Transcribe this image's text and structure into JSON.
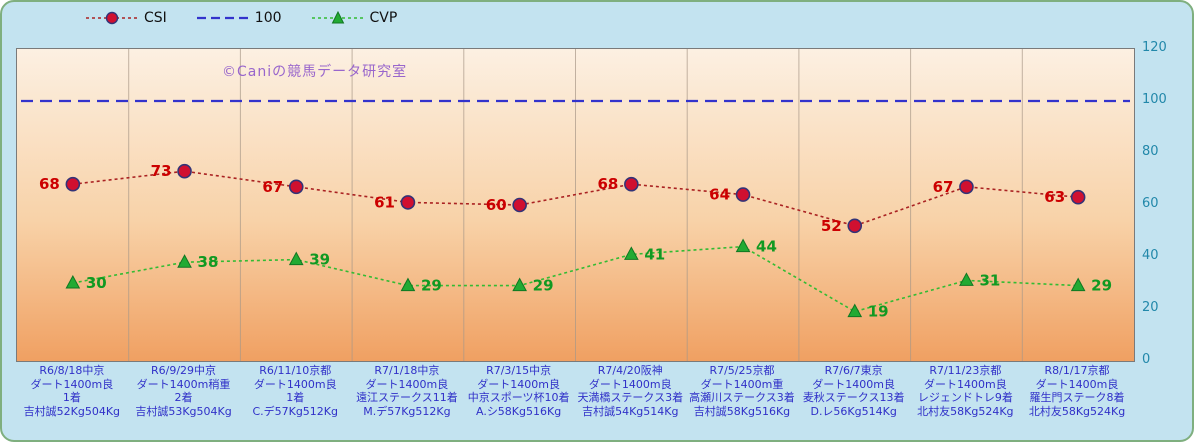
{
  "watermark": "©Caniの競馬データ研究室",
  "legend": {
    "items": [
      {
        "label": "CSI",
        "type": "circle",
        "marker_color": "#D01030",
        "line_color": "#AA2222"
      },
      {
        "label": "100",
        "type": "line",
        "marker_color": "#3333CC",
        "line_color": "#3333CC"
      },
      {
        "label": "CVP",
        "type": "triangle",
        "marker_color": "#22AA33",
        "line_color": "#33BB33"
      }
    ]
  },
  "colors": {
    "background": "#C3E3F0",
    "plot_gradient_top": "#FCF0E2",
    "plot_gradient_bottom": "#F0A062",
    "csi_label": "#CC0000",
    "cvp_label": "#119922",
    "ref_line": "#3333CC",
    "axis_text": "#2288AA",
    "category_text": "#3030C8",
    "watermark_text": "#9966CC"
  },
  "chart_data": {
    "type": "line",
    "title": "",
    "xlabel": "",
    "ylabel": "",
    "ylim": [
      0,
      120
    ],
    "yticks": [
      0,
      20,
      40,
      60,
      80,
      100,
      120
    ],
    "grid": "vertical-only",
    "legend_position": "top-left",
    "reference_line": {
      "name": "100",
      "value": 100,
      "color": "#3333CC"
    },
    "series": [
      {
        "name": "CSI",
        "marker": "circle",
        "marker_color": "#D01030",
        "marker_edge": "#333377",
        "line_color": "#AA2222",
        "label_color": "#CC0000",
        "label_side": "left",
        "values": [
          68,
          73,
          67,
          61,
          60,
          68,
          64,
          52,
          67,
          63
        ]
      },
      {
        "name": "CVP",
        "marker": "triangle-up",
        "marker_color": "#22AA33",
        "marker_edge": "#117722",
        "line_color": "#33BB33",
        "label_color": "#119922",
        "label_side": "right",
        "values": [
          30,
          38,
          39,
          29,
          29,
          41,
          44,
          19,
          31,
          29
        ]
      }
    ],
    "categories": [
      {
        "lines": [
          "R6/8/18中京",
          "ダート1400m良",
          "1着",
          "吉村誠52Kg504Kg"
        ]
      },
      {
        "lines": [
          "R6/9/29中京",
          "ダート1400m稍重",
          "2着",
          "吉村誠53Kg504Kg"
        ]
      },
      {
        "lines": [
          "R6/11/10京都",
          "ダート1400m良",
          "1着",
          "C.デ57Kg512Kg"
        ]
      },
      {
        "lines": [
          "R7/1/18中京",
          "ダート1400m良",
          "遠江ステークス11着",
          "M.デ57Kg512Kg"
        ]
      },
      {
        "lines": [
          "R7/3/15中京",
          "ダート1400m良",
          "中京スポーツ杯10着",
          "A.シ58Kg516Kg"
        ]
      },
      {
        "lines": [
          "R7/4/20阪神",
          "ダート1400m良",
          "天満橋ステークス3着",
          "吉村誠54Kg514Kg"
        ]
      },
      {
        "lines": [
          "R7/5/25京都",
          "ダート1400m重",
          "高瀬川ステークス3着",
          "吉村誠58Kg516Kg"
        ]
      },
      {
        "lines": [
          "R7/6/7東京",
          "ダート1400m良",
          "麦秋ステークス13着",
          "D.レ56Kg514Kg"
        ]
      },
      {
        "lines": [
          "R7/11/23京都",
          "ダート1400m良",
          "レジェンドトレ9着",
          "北村友58Kg524Kg"
        ]
      },
      {
        "lines": [
          "R8/1/17京都",
          "ダート1400m良",
          "羅生門ステーク8着",
          "北村友58Kg524Kg"
        ]
      }
    ]
  }
}
